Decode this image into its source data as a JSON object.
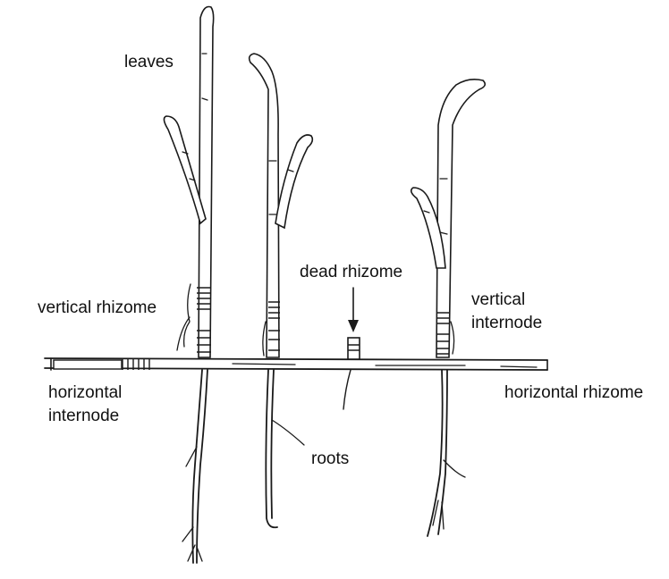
{
  "labels": {
    "leaves": "leaves",
    "vertical_rhizome": "vertical rhizome",
    "horizontal_internode_line1": "horizontal",
    "horizontal_internode_line2": "internode",
    "dead_rhizome": "dead rhizome",
    "vertical_internode_line1": "vertical",
    "vertical_internode_line2": "internode",
    "horizontal_rhizome": "horizontal rhizome",
    "roots": "roots"
  }
}
